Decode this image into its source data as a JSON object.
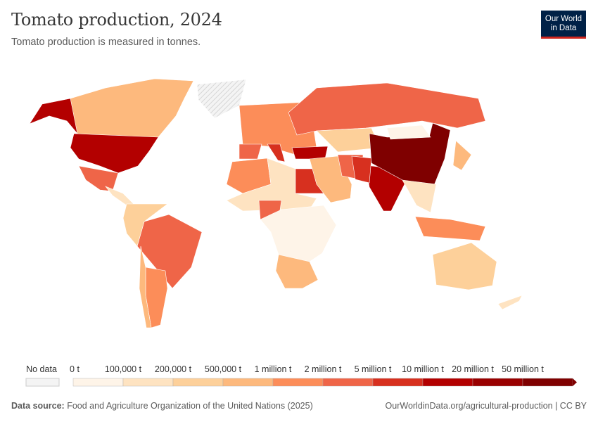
{
  "header": {
    "title": "Tomato production, 2024",
    "subtitle": "Tomato production is measured in tonnes.",
    "logo_text": "Our World in Data"
  },
  "legend": {
    "no_data_label": "No data",
    "no_data_color": "#eeeeee",
    "tick_labels": [
      "0 t",
      "100,000 t",
      "200,000 t",
      "500,000 t",
      "1 million t",
      "2 million t",
      "5 million t",
      "10 million t",
      "20 million t",
      "50 million t"
    ],
    "bin_colors": [
      "#fef4e8",
      "#fee3c1",
      "#fdd09a",
      "#fdb97d",
      "#fc8d59",
      "#ef6548",
      "#d7301f",
      "#b30000",
      "#990000",
      "#7f0000"
    ]
  },
  "map_regions": [
    {
      "country": "Canada",
      "bin": 3
    },
    {
      "country": "United States (Alaska)",
      "bin": 7
    },
    {
      "country": "United States",
      "bin": 7
    },
    {
      "country": "Greenland",
      "bin": -1
    },
    {
      "country": "Mexico",
      "bin": 5
    },
    {
      "country": "Central America",
      "bin": 1
    },
    {
      "country": "Brazil",
      "bin": 5
    },
    {
      "country": "Argentina",
      "bin": 4
    },
    {
      "country": "Northern South America",
      "bin": 2
    },
    {
      "country": "Chile",
      "bin": 3
    },
    {
      "country": "North Africa West",
      "bin": 4
    },
    {
      "country": "Sahara",
      "bin": 1
    },
    {
      "country": "Egypt",
      "bin": 6
    },
    {
      "country": "Nigeria",
      "bin": 5
    },
    {
      "country": "Sub-Saharan Africa",
      "bin": 0
    },
    {
      "country": "Southern Africa",
      "bin": 3
    },
    {
      "country": "Europe",
      "bin": 4
    },
    {
      "country": "Spain",
      "bin": 5
    },
    {
      "country": "Italy",
      "bin": 6
    },
    {
      "country": "Turkey",
      "bin": 7
    },
    {
      "country": "Russia",
      "bin": 5
    },
    {
      "country": "Central Asia",
      "bin": 2
    },
    {
      "country": "Middle East",
      "bin": 3
    },
    {
      "country": "Iran",
      "bin": 5
    },
    {
      "country": "India",
      "bin": 7
    },
    {
      "country": "Pakistan",
      "bin": 6
    },
    {
      "country": "China",
      "bin": 9
    },
    {
      "country": "Mongolia",
      "bin": 0
    },
    {
      "country": "Southeast Asia",
      "bin": 1
    },
    {
      "country": "Indonesia",
      "bin": 4
    },
    {
      "country": "Japan",
      "bin": 3
    },
    {
      "country": "Australia",
      "bin": 2
    },
    {
      "country": "New Zealand",
      "bin": 1
    }
  ],
  "footer": {
    "source_label": "Data source:",
    "source_text": "Food and Agriculture Organization of the United Nations (2025)",
    "url_text": "OurWorldinData.org/agricultural-production | CC BY"
  }
}
